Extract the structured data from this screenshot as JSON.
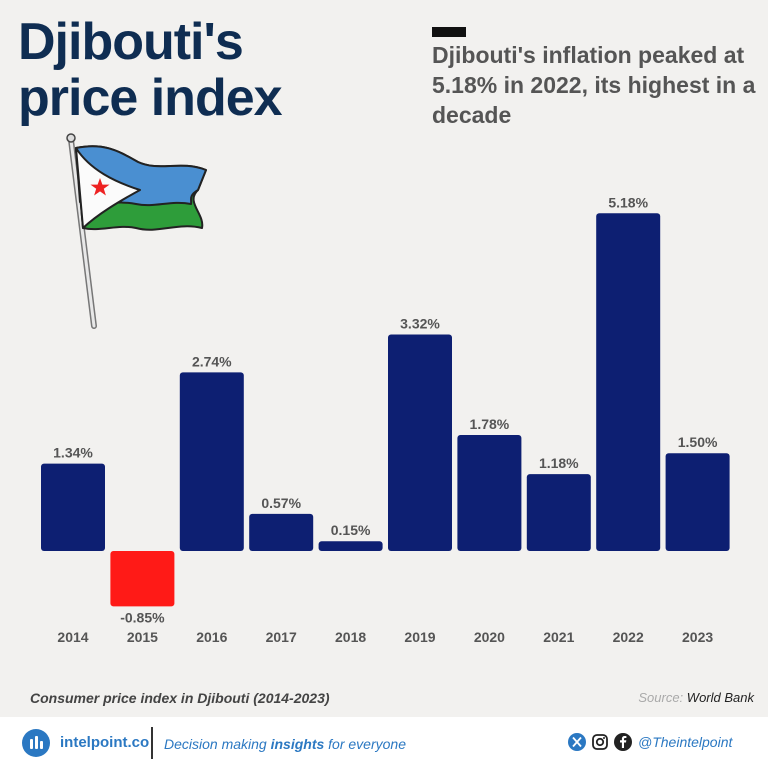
{
  "header": {
    "title_line1": "Djibouti's",
    "title_line2": "price index",
    "subtitle": "Djibouti's inflation peaked at 5.18% in 2022, its highest in a decade"
  },
  "chart_data": {
    "type": "bar",
    "categories": [
      "2014",
      "2015",
      "2016",
      "2017",
      "2018",
      "2019",
      "2020",
      "2021",
      "2022",
      "2023"
    ],
    "values": [
      1.34,
      -0.85,
      2.74,
      0.57,
      0.15,
      3.32,
      1.78,
      1.18,
      5.18,
      1.5
    ],
    "value_labels": [
      "1.34%",
      "-0.85%",
      "2.74%",
      "0.57%",
      "0.15%",
      "3.32%",
      "1.78%",
      "1.18%",
      "5.18%",
      "1.50%"
    ],
    "colors": {
      "positive": "#0d1f72",
      "negative": "#ff1a17"
    },
    "grid": false
  },
  "caption": "Consumer price index in Djibouti (2014-2023)",
  "source": {
    "prefix": "Source:",
    "name": "World Bank"
  },
  "footer": {
    "brand": "intelpoint.co",
    "tagline_pre": "Decision making",
    "tagline_bold": "insights",
    "tagline_post": "for everyone",
    "handle": "@Theintelpoint",
    "icons": [
      "x-icon",
      "instagram-icon",
      "facebook-icon"
    ]
  }
}
